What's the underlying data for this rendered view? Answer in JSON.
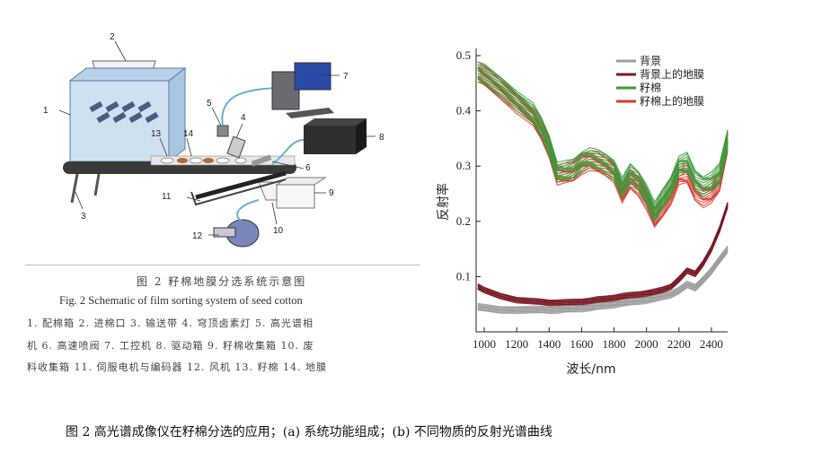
{
  "figure_left": {
    "part_labels": [
      "1",
      "2",
      "3",
      "4",
      "5",
      "6",
      "7",
      "8",
      "9",
      "10",
      "11",
      "12",
      "13",
      "14"
    ],
    "caption_cn": "图 2   籽棉地膜分选系统示意图",
    "caption_en": "Fig. 2    Schematic of film sorting system of seed cotton",
    "legend_lines": [
      "1. 配棉箱   2. 进棉口   3. 输送带   4. 穹顶卤素灯   5. 高光谱相",
      "机   6. 高速喷阀   7. 工控机   8. 驱动箱   9. 籽棉收集箱   10. 废",
      "料收集箱   11. 伺服电机与编码器   12. 风机   13. 籽棉   14. 地膜"
    ]
  },
  "bottom_caption": "图  2  高光谱成像仪在籽棉分选的应用；(a)  系统功能组成；(b)  不同物质的反射光谱曲线",
  "chart_data": {
    "type": "line",
    "title": "",
    "xlabel": "波长/nm",
    "ylabel": "反射率",
    "xlim": [
      950,
      2500
    ],
    "ylim": [
      0,
      0.5
    ],
    "xticks": [
      1000,
      1200,
      1400,
      1600,
      1800,
      2000,
      2200,
      2400
    ],
    "yticks": [
      0.1,
      0.2,
      0.3,
      0.4,
      0.5
    ],
    "legend_position": "top-right",
    "x": [
      960,
      1000,
      1100,
      1200,
      1300,
      1350,
      1400,
      1450,
      1500,
      1550,
      1600,
      1650,
      1700,
      1750,
      1800,
      1850,
      1900,
      1950,
      2000,
      2050,
      2100,
      2150,
      2200,
      2250,
      2300,
      2350,
      2400,
      2450,
      2500
    ],
    "series": [
      {
        "name": "背景",
        "color": "#9e9e9e",
        "band": 0.012,
        "values": [
          0.045,
          0.043,
          0.04,
          0.04,
          0.04,
          0.04,
          0.04,
          0.04,
          0.041,
          0.042,
          0.043,
          0.044,
          0.046,
          0.048,
          0.05,
          0.052,
          0.054,
          0.056,
          0.058,
          0.06,
          0.064,
          0.068,
          0.075,
          0.085,
          0.08,
          0.095,
          0.11,
          0.13,
          0.15
        ]
      },
      {
        "name": "背景上的地膜",
        "color": "#7b1b24",
        "band": 0.01,
        "values": [
          0.082,
          0.075,
          0.065,
          0.058,
          0.055,
          0.054,
          0.053,
          0.053,
          0.053,
          0.054,
          0.055,
          0.056,
          0.058,
          0.06,
          0.062,
          0.064,
          0.066,
          0.068,
          0.07,
          0.072,
          0.076,
          0.082,
          0.095,
          0.11,
          0.105,
          0.125,
          0.15,
          0.185,
          0.23
        ]
      },
      {
        "name": "籽棉",
        "color": "#3c9a3c",
        "band": 0.035,
        "values": [
          0.47,
          0.465,
          0.445,
          0.42,
          0.395,
          0.37,
          0.34,
          0.29,
          0.29,
          0.295,
          0.31,
          0.315,
          0.31,
          0.305,
          0.295,
          0.26,
          0.285,
          0.275,
          0.25,
          0.215,
          0.24,
          0.265,
          0.3,
          0.305,
          0.275,
          0.265,
          0.27,
          0.285,
          0.35
        ]
      },
      {
        "name": "籽棉上的地膜",
        "color": "#d83a2c",
        "band": 0.035,
        "values": [
          0.47,
          0.462,
          0.44,
          0.415,
          0.39,
          0.365,
          0.335,
          0.285,
          0.285,
          0.29,
          0.305,
          0.31,
          0.305,
          0.3,
          0.29,
          0.25,
          0.275,
          0.265,
          0.24,
          0.205,
          0.225,
          0.25,
          0.285,
          0.285,
          0.255,
          0.245,
          0.25,
          0.27,
          0.345
        ]
      }
    ]
  }
}
